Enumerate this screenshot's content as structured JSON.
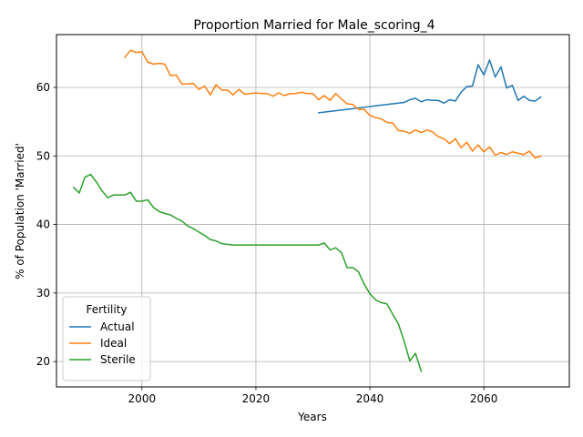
{
  "chart_data": {
    "type": "line",
    "title": "Proportion Married for Male_scoring_4",
    "xlabel": "Years",
    "ylabel": "% of Population 'Married'",
    "xlim": [
      1985,
      2075
    ],
    "ylim": [
      16.3,
      67.7
    ],
    "xticks": [
      2000,
      2020,
      2040,
      2060
    ],
    "yticks": [
      20,
      30,
      40,
      50,
      60
    ],
    "grid": true,
    "legend": {
      "title": "Fertility",
      "placement": "lower-left"
    },
    "series": [
      {
        "name": "Actual",
        "color": "#1f77b4",
        "x": [
          2031,
          2032,
          2033,
          2034,
          2035,
          2036,
          2037,
          2038,
          2039,
          2040,
          2041,
          2042,
          2043,
          2044,
          2045,
          2046,
          2047,
          2048,
          2049,
          2050,
          2051,
          2052,
          2053,
          2054,
          2055,
          2056,
          2057,
          2058,
          2059,
          2060,
          2061,
          2062,
          2063,
          2064,
          2065,
          2066,
          2067,
          2068,
          2069,
          2070
        ],
        "y": [
          56.3,
          56.4,
          56.5,
          56.6,
          56.7,
          56.8,
          56.9,
          57.0,
          57.1,
          57.2,
          57.3,
          57.4,
          57.5,
          57.6,
          57.7,
          57.8,
          58.2,
          58.4,
          57.9,
          58.2,
          58.1,
          58.1,
          57.7,
          58.2,
          58.0,
          59.3,
          60.1,
          60.2,
          63.3,
          61.8,
          64.0,
          61.5,
          63.0,
          59.9,
          60.3,
          58.1,
          58.7,
          58.1,
          58.0,
          58.6
        ]
      },
      {
        "name": "Ideal",
        "color": "#ff7f0e",
        "x": [
          1997,
          1998,
          1999,
          2000,
          2001,
          2002,
          2003,
          2004,
          2005,
          2006,
          2007,
          2008,
          2009,
          2010,
          2011,
          2012,
          2013,
          2014,
          2015,
          2016,
          2017,
          2018,
          2019,
          2020,
          2021,
          2022,
          2023,
          2024,
          2025,
          2026,
          2027,
          2028,
          2029,
          2030,
          2031,
          2032,
          2033,
          2034,
          2035,
          2036,
          2037,
          2038,
          2039,
          2040,
          2041,
          2042,
          2043,
          2044,
          2045,
          2046,
          2047,
          2048,
          2049,
          2050,
          2051,
          2052,
          2053,
          2054,
          2055,
          2056,
          2057,
          2058,
          2059,
          2060,
          2061,
          2062,
          2063,
          2064,
          2065,
          2066,
          2067,
          2068,
          2069,
          2070
        ],
        "y": [
          64.4,
          65.4,
          65.1,
          65.2,
          63.7,
          63.4,
          63.5,
          63.4,
          61.7,
          61.8,
          60.5,
          60.5,
          60.6,
          59.7,
          60.2,
          58.9,
          60.4,
          59.6,
          59.6,
          58.9,
          59.7,
          59.0,
          59.1,
          59.2,
          59.1,
          59.1,
          58.7,
          59.2,
          58.8,
          59.1,
          59.1,
          59.3,
          59.1,
          59.1,
          58.2,
          58.8,
          58.1,
          59.1,
          58.3,
          57.6,
          57.5,
          56.8,
          56.8,
          55.9,
          55.6,
          55.4,
          54.9,
          54.8,
          53.7,
          53.6,
          53.3,
          53.8,
          53.4,
          53.8,
          53.5,
          52.8,
          52.5,
          51.8,
          52.5,
          51.2,
          52.0,
          50.7,
          51.6,
          50.6,
          51.3,
          50.1,
          50.5,
          50.2,
          50.6,
          50.4,
          50.2,
          50.7,
          49.7,
          50.0
        ]
      },
      {
        "name": "Sterile",
        "color": "#2ca02c",
        "x": [
          1988,
          1989,
          1990,
          1991,
          1992,
          1993,
          1994,
          1995,
          1996,
          1997,
          1998,
          1999,
          2000,
          2001,
          2002,
          2003,
          2004,
          2005,
          2006,
          2007,
          2008,
          2009,
          2010,
          2011,
          2012,
          2013,
          2014,
          2015,
          2016,
          2017,
          2018,
          2019,
          2020,
          2021,
          2022,
          2023,
          2024,
          2025,
          2026,
          2027,
          2028,
          2029,
          2030,
          2031,
          2032,
          2033,
          2034,
          2035,
          2036,
          2037,
          2038,
          2039,
          2040,
          2041,
          2042,
          2043,
          2044,
          2045,
          2046,
          2047,
          2048,
          2049
        ],
        "y": [
          45.4,
          44.6,
          46.9,
          47.3,
          46.2,
          44.9,
          43.9,
          44.3,
          44.3,
          44.3,
          44.7,
          43.4,
          43.4,
          43.6,
          42.5,
          41.9,
          41.6,
          41.4,
          40.9,
          40.5,
          39.8,
          39.4,
          38.9,
          38.4,
          37.8,
          37.6,
          37.2,
          37.1,
          37.0,
          37.0,
          37.0,
          37.0,
          37.0,
          37.0,
          37.0,
          37.0,
          37.0,
          37.0,
          37.0,
          37.0,
          37.0,
          37.0,
          37.0,
          37.0,
          37.3,
          36.3,
          36.6,
          35.9,
          33.7,
          33.7,
          33.1,
          31.3,
          29.9,
          29.0,
          28.6,
          28.4,
          26.9,
          25.5,
          23.0,
          20.1,
          21.2,
          18.6
        ]
      }
    ]
  }
}
